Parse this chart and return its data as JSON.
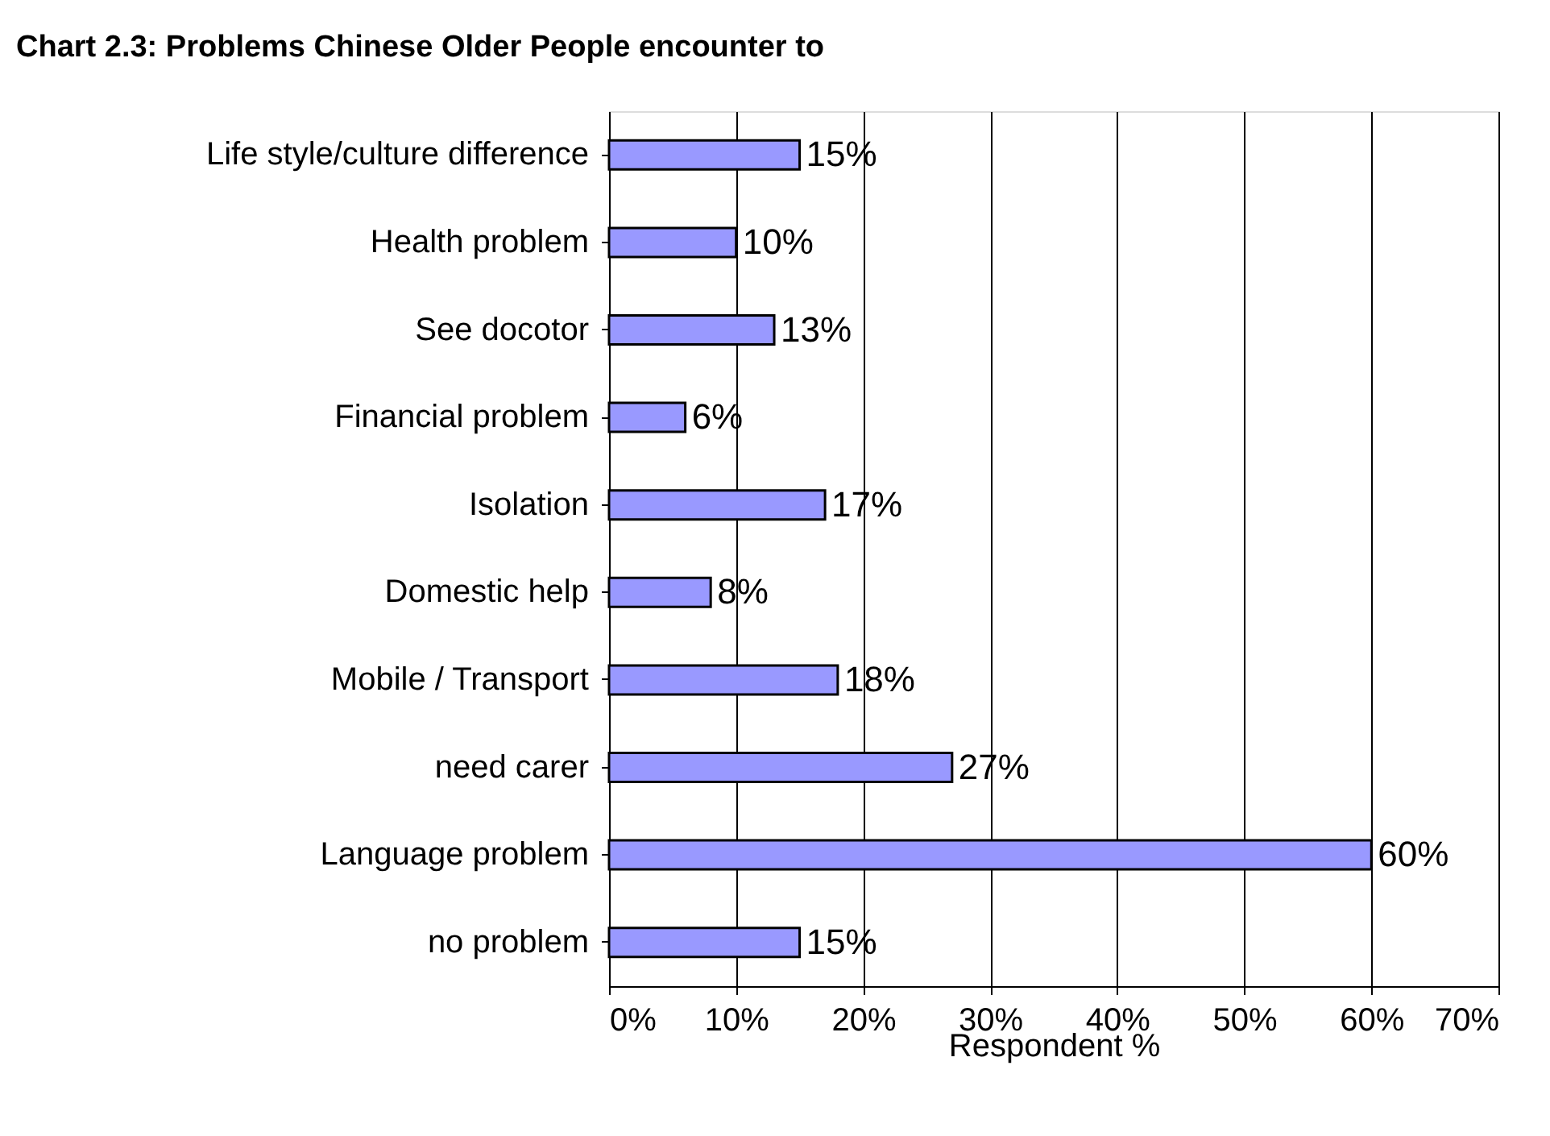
{
  "chart_data": {
    "type": "bar",
    "orientation": "horizontal",
    "title": "Chart 2.3: Problems Chinese Older People encounter to",
    "xlabel": "Respondent %",
    "categories": [
      "Life style/culture difference",
      "Health problem",
      "See docotor",
      "Financial problem",
      "Isolation",
      "Domestic help",
      "Mobile / Transport",
      "need carer",
      "Language problem",
      "no problem"
    ],
    "values": [
      15,
      10,
      13,
      6,
      17,
      8,
      18,
      27,
      60,
      15
    ],
    "value_labels": [
      "15%",
      "10%",
      "13%",
      "6%",
      "17%",
      "8%",
      "18%",
      "27%",
      "60%",
      "15%"
    ],
    "color": "#9999ff",
    "xlim": [
      0,
      70
    ],
    "xticks": [
      {
        "value": 0,
        "label": "0%"
      },
      {
        "value": 10,
        "label": "10%"
      },
      {
        "value": 20,
        "label": "20%"
      },
      {
        "value": 30,
        "label": "30%"
      },
      {
        "value": 40,
        "label": "40%"
      },
      {
        "value": 50,
        "label": "50%"
      },
      {
        "value": 60,
        "label": "60%"
      },
      {
        "value": 70,
        "label": "70%"
      }
    ],
    "grid": "x"
  }
}
